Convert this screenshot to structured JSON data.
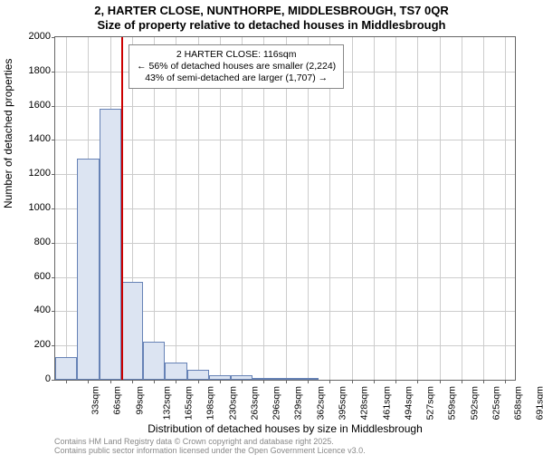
{
  "title_line1": "2, HARTER CLOSE, NUNTHORPE, MIDDLESBROUGH, TS7 0QR",
  "title_line2": "Size of property relative to detached houses in Middlesbrough",
  "ylabel": "Number of detached properties",
  "xlabel": "Distribution of detached houses by size in Middlesbrough",
  "footnote1": "Contains HM Land Registry data © Crown copyright and database right 2025.",
  "footnote2": "Contains public sector information licensed under the Open Government Licence v3.0.",
  "annotation": {
    "line1": "2 HARTER CLOSE: 116sqm",
    "line2": "← 56% of detached houses are smaller (2,224)",
    "line3": "43% of semi-detached are larger (1,707) →"
  },
  "chart": {
    "type": "histogram",
    "ylim": [
      0,
      2000
    ],
    "ytick_step": 200,
    "xticks": [
      "33sqm",
      "66sqm",
      "99sqm",
      "132sqm",
      "165sqm",
      "198sqm",
      "230sqm",
      "263sqm",
      "296sqm",
      "329sqm",
      "362sqm",
      "395sqm",
      "428sqm",
      "461sqm",
      "494sqm",
      "527sqm",
      "559sqm",
      "592sqm",
      "625sqm",
      "658sqm",
      "691sqm"
    ],
    "values": [
      130,
      1290,
      1580,
      570,
      220,
      100,
      60,
      25,
      25,
      12,
      12,
      6,
      0,
      0,
      0,
      0,
      0,
      0,
      0,
      0,
      0
    ],
    "bar_fill": "#dce4f2",
    "bar_border": "#6682b6",
    "background_color": "#ffffff",
    "grid_color": "#cccccc",
    "axis_color": "#666666",
    "marker_value": 116,
    "marker_color": "#cc0000",
    "x_min": 16.5,
    "x_max": 707.5,
    "bin_width": 33,
    "title_fontsize": 13,
    "label_fontsize": 12,
    "tick_fontsize": 11,
    "footnote_color": "#888888"
  }
}
